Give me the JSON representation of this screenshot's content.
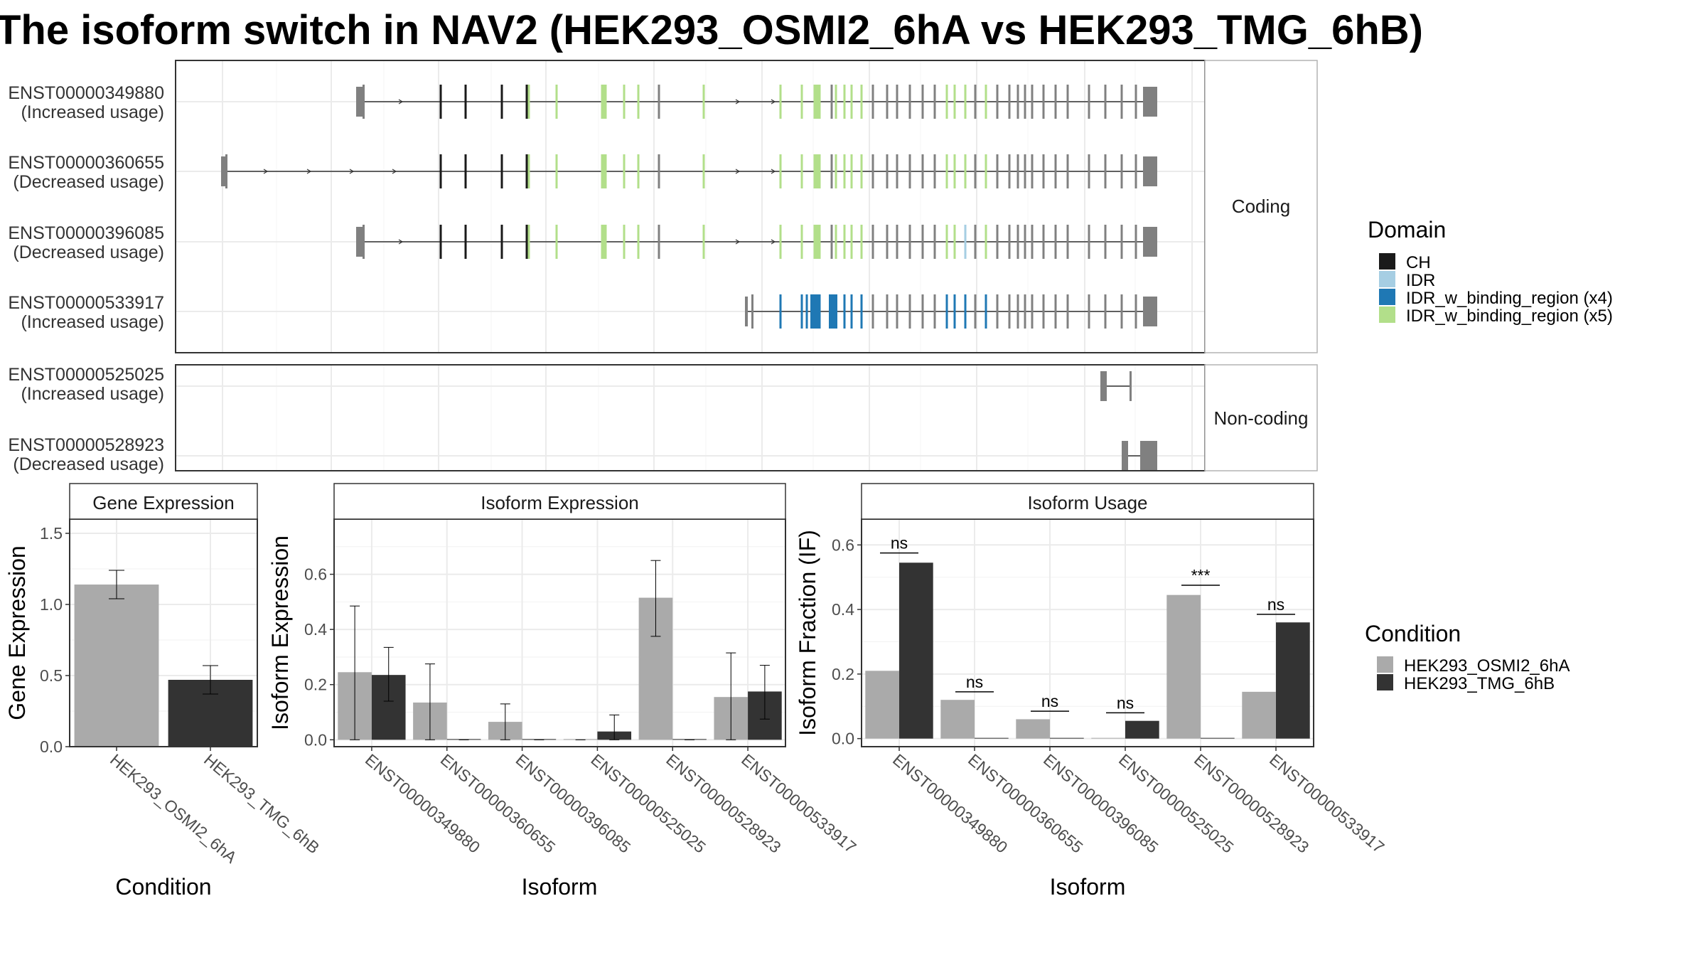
{
  "title": "The isoform switch in NAV2 (HEK293_OSMI2_6hA vs HEK293_TMG_6hB)",
  "colors": {
    "CH": "#1a1a1a",
    "IDR": "#a6cee3",
    "IDR_w_binding_region (x4)": "#1f78b4",
    "IDR_w_binding_region (x5)": "#b2df8a",
    "exon": "#808080",
    "HEK293_OSMI2_6hA": "#aaaaaa",
    "HEK293_TMG_6hB": "#333333"
  },
  "structure": {
    "facets": {
      "coding": "Coding",
      "noncoding": "Non-coding"
    },
    "isoforms": {
      "coding": [
        {
          "id": "ENST00000349880",
          "status": "(Increased usage)"
        },
        {
          "id": "ENST00000360655",
          "status": "(Decreased usage)"
        },
        {
          "id": "ENST00000396085",
          "status": "(Decreased usage)"
        },
        {
          "id": "ENST00000533917",
          "status": "(Increased usage)"
        }
      ],
      "noncoding": [
        {
          "id": "ENST00000525025",
          "status": "(Increased usage)"
        },
        {
          "id": "ENST00000528923",
          "status": "(Decreased usage)"
        }
      ]
    }
  },
  "legend": {
    "domain": {
      "title": "Domain",
      "items": [
        "CH",
        "IDR",
        "IDR_w_binding_region (x4)",
        "IDR_w_binding_region (x5)"
      ]
    },
    "condition": {
      "title": "Condition",
      "items": [
        "HEK293_OSMI2_6hA",
        "HEK293_TMG_6hB"
      ]
    }
  },
  "chart_data": [
    {
      "type": "bar",
      "panel": "Gene Expression",
      "categories": [
        "HEK293_OSMI2_6hA",
        "HEK293_TMG_6hB"
      ],
      "values": [
        1.14,
        0.47
      ],
      "error_low": [
        1.04,
        0.37
      ],
      "error_high": [
        1.24,
        0.57
      ],
      "xlabel": "Condition",
      "ylabel": "Gene Expression",
      "ylim": [
        0,
        1.6
      ],
      "yticks": [
        0.0,
        0.5,
        1.0,
        1.5
      ],
      "ytick_labels": [
        "0.0",
        "0.5",
        "1.0",
        "1.5"
      ],
      "grid": true
    },
    {
      "type": "bar",
      "panel": "Isoform Expression",
      "categories": [
        "ENST00000349880",
        "ENST00000360655",
        "ENST00000396085",
        "ENST00000525025",
        "ENST00000528923",
        "ENST00000533917"
      ],
      "series": [
        {
          "name": "HEK293_OSMI2_6hA",
          "values": [
            0.245,
            0.135,
            0.065,
            0.0,
            0.515,
            0.155
          ],
          "error_low": [
            0.0,
            0.0,
            0.0,
            0.0,
            0.375,
            0.0
          ],
          "error_high": [
            0.485,
            0.275,
            0.13,
            0.0,
            0.65,
            0.315
          ]
        },
        {
          "name": "HEK293_TMG_6hB",
          "values": [
            0.235,
            0.0,
            0.0,
            0.03,
            0.0,
            0.175
          ],
          "error_low": [
            0.14,
            0.0,
            0.0,
            0.0,
            0.0,
            0.075
          ],
          "error_high": [
            0.335,
            0.0,
            0.0,
            0.09,
            0.0,
            0.27
          ]
        }
      ],
      "xlabel": "Isoform",
      "ylabel": "Isoform Expression",
      "ylim": [
        -0.025,
        0.8
      ],
      "yticks": [
        0.0,
        0.2,
        0.4,
        0.6
      ],
      "ytick_labels": [
        "0.0",
        "0.2",
        "0.4",
        "0.6"
      ],
      "grid": true
    },
    {
      "type": "bar",
      "panel": "Isoform Usage",
      "categories": [
        "ENST00000349880",
        "ENST00000360655",
        "ENST00000396085",
        "ENST00000525025",
        "ENST00000528923",
        "ENST00000533917"
      ],
      "series": [
        {
          "name": "HEK293_OSMI2_6hA",
          "values": [
            0.21,
            0.12,
            0.06,
            0.0,
            0.445,
            0.145
          ]
        },
        {
          "name": "HEK293_TMG_6hB",
          "values": [
            0.545,
            0.0,
            0.0,
            0.055,
            0.0,
            0.36
          ]
        }
      ],
      "significance": [
        "ns",
        "ns",
        "ns",
        "ns",
        "***",
        "ns"
      ],
      "significance_y": [
        0.575,
        0.145,
        0.085,
        0.08,
        0.475,
        0.385
      ],
      "xlabel": "Isoform",
      "ylabel": "Isoform Fraction (IF)",
      "ylim": [
        -0.025,
        0.68
      ],
      "yticks": [
        0.0,
        0.2,
        0.4,
        0.6
      ],
      "ytick_labels": [
        "0.0",
        "0.2",
        "0.4",
        "0.6"
      ],
      "grid": true
    }
  ]
}
